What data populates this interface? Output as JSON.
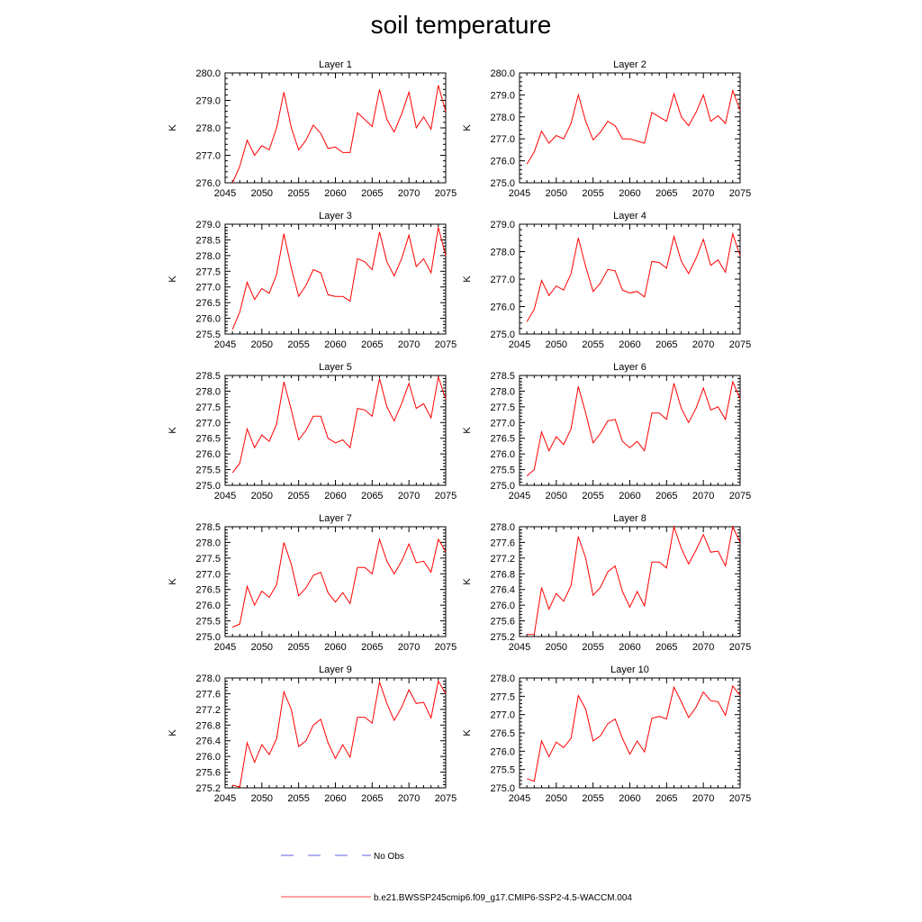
{
  "title": "soil temperature",
  "legend": {
    "obs_label": "No Obs",
    "model_label": "b.e21.BWSSP245cmip6.f09_g17.CMIP6-SSP2-4.5-WACCM.004",
    "obs_color": "#2b2bd6",
    "model_color": "#ff0000"
  },
  "chart_data": [
    {
      "type": "line",
      "title": "Layer 1",
      "ylabel": "K",
      "xlim": [
        2045,
        2075
      ],
      "ylim": [
        276.0,
        280.0
      ],
      "x_ticks": [
        2045,
        2050,
        2055,
        2060,
        2065,
        2070,
        2075
      ],
      "y_ticks": [
        "276.0",
        "277.0",
        "278.0",
        "279.0",
        "280.0"
      ],
      "x": [
        2046,
        2047,
        2048,
        2049,
        2050,
        2051,
        2052,
        2053,
        2054,
        2055,
        2056,
        2057,
        2058,
        2059,
        2060,
        2061,
        2062,
        2063,
        2064,
        2065,
        2066,
        2067,
        2068,
        2069,
        2070,
        2071,
        2072,
        2073,
        2074,
        2075
      ],
      "series": [
        {
          "name": "b.e21.BWSSP245cmip6.f09_g17.CMIP6-SSP2-4.5-WACCM.004",
          "values": [
            276.0,
            276.6,
            277.55,
            277.0,
            277.35,
            277.2,
            278.0,
            279.3,
            278.0,
            277.2,
            277.55,
            278.1,
            277.8,
            277.25,
            277.3,
            277.1,
            277.1,
            278.55,
            278.3,
            278.05,
            279.4,
            278.3,
            277.85,
            278.5,
            279.3,
            278.0,
            278.4,
            277.95,
            279.55,
            278.6
          ]
        }
      ]
    },
    {
      "type": "line",
      "title": "Layer 2",
      "ylabel": "K",
      "xlim": [
        2045,
        2075
      ],
      "ylim": [
        275.0,
        280.0
      ],
      "x_ticks": [
        2045,
        2050,
        2055,
        2060,
        2065,
        2070,
        2075
      ],
      "y_ticks": [
        "275.0",
        "276.0",
        "277.0",
        "278.0",
        "279.0",
        "280.0"
      ],
      "x": [
        2046,
        2047,
        2048,
        2049,
        2050,
        2051,
        2052,
        2053,
        2054,
        2055,
        2056,
        2057,
        2058,
        2059,
        2060,
        2061,
        2062,
        2063,
        2064,
        2065,
        2066,
        2067,
        2068,
        2069,
        2070,
        2071,
        2072,
        2073,
        2074,
        2075
      ],
      "series": [
        {
          "name": "b.e21.BWSSP245cmip6.f09_g17.CMIP6-SSP2-4.5-WACCM.004",
          "values": [
            275.85,
            276.4,
            277.35,
            276.8,
            277.15,
            277.0,
            277.7,
            279.0,
            277.8,
            276.95,
            277.3,
            277.8,
            277.6,
            277.0,
            277.0,
            276.9,
            276.8,
            278.2,
            278.0,
            277.8,
            279.05,
            278.0,
            277.6,
            278.2,
            279.0,
            277.8,
            278.05,
            277.7,
            279.2,
            278.3
          ]
        }
      ]
    },
    {
      "type": "line",
      "title": "Layer 3",
      "ylabel": "K",
      "xlim": [
        2045,
        2075
      ],
      "ylim": [
        275.5,
        279.0
      ],
      "x_ticks": [
        2045,
        2050,
        2055,
        2060,
        2065,
        2070,
        2075
      ],
      "y_ticks": [
        "275.5",
        "276.0",
        "276.5",
        "277.0",
        "277.5",
        "278.0",
        "278.5",
        "279.0"
      ],
      "x": [
        2046,
        2047,
        2048,
        2049,
        2050,
        2051,
        2052,
        2053,
        2054,
        2055,
        2056,
        2057,
        2058,
        2059,
        2060,
        2061,
        2062,
        2063,
        2064,
        2065,
        2066,
        2067,
        2068,
        2069,
        2070,
        2071,
        2072,
        2073,
        2074,
        2075
      ],
      "series": [
        {
          "name": "b.e21.BWSSP245cmip6.f09_g17.CMIP6-SSP2-4.5-WACCM.004",
          "values": [
            275.65,
            276.2,
            277.15,
            276.6,
            276.95,
            276.8,
            277.4,
            278.7,
            277.6,
            276.7,
            277.05,
            277.55,
            277.45,
            276.75,
            276.7,
            276.7,
            276.55,
            277.9,
            277.8,
            277.55,
            278.75,
            277.8,
            277.35,
            277.9,
            278.65,
            277.65,
            277.9,
            277.45,
            278.9,
            278.0
          ]
        }
      ]
    },
    {
      "type": "line",
      "title": "Layer 4",
      "ylabel": "K",
      "xlim": [
        2045,
        2075
      ],
      "ylim": [
        275.0,
        279.0
      ],
      "x_ticks": [
        2045,
        2050,
        2055,
        2060,
        2065,
        2070,
        2075
      ],
      "y_ticks": [
        "275.0",
        "276.0",
        "277.0",
        "278.0",
        "279.0"
      ],
      "x": [
        2046,
        2047,
        2048,
        2049,
        2050,
        2051,
        2052,
        2053,
        2054,
        2055,
        2056,
        2057,
        2058,
        2059,
        2060,
        2061,
        2062,
        2063,
        2064,
        2065,
        2066,
        2067,
        2068,
        2069,
        2070,
        2071,
        2072,
        2073,
        2074,
        2075
      ],
      "series": [
        {
          "name": "b.e21.BWSSP245cmip6.f09_g17.CMIP6-SSP2-4.5-WACCM.004",
          "values": [
            275.45,
            275.9,
            276.95,
            276.4,
            276.75,
            276.6,
            277.2,
            278.5,
            277.45,
            276.55,
            276.85,
            277.35,
            277.3,
            276.6,
            276.5,
            276.55,
            276.35,
            277.65,
            277.6,
            277.4,
            278.55,
            277.65,
            277.2,
            277.75,
            278.45,
            277.5,
            277.7,
            277.25,
            278.65,
            277.85
          ]
        }
      ]
    },
    {
      "type": "line",
      "title": "Layer 5",
      "ylabel": "K",
      "xlim": [
        2045,
        2075
      ],
      "ylim": [
        275.0,
        278.5
      ],
      "x_ticks": [
        2045,
        2050,
        2055,
        2060,
        2065,
        2070,
        2075
      ],
      "y_ticks": [
        "275.0",
        "275.5",
        "276.0",
        "276.5",
        "277.0",
        "277.5",
        "278.0",
        "278.5"
      ],
      "x": [
        2046,
        2047,
        2048,
        2049,
        2050,
        2051,
        2052,
        2053,
        2054,
        2055,
        2056,
        2057,
        2058,
        2059,
        2060,
        2061,
        2062,
        2063,
        2064,
        2065,
        2066,
        2067,
        2068,
        2069,
        2070,
        2071,
        2072,
        2073,
        2074,
        2075
      ],
      "series": [
        {
          "name": "b.e21.BWSSP245cmip6.f09_g17.CMIP6-SSP2-4.5-WACCM.004",
          "values": [
            275.4,
            275.7,
            276.8,
            276.2,
            276.6,
            276.4,
            276.95,
            278.3,
            277.4,
            276.45,
            276.75,
            277.2,
            277.2,
            276.5,
            276.35,
            276.45,
            276.2,
            277.45,
            277.4,
            277.2,
            278.4,
            277.5,
            277.05,
            277.6,
            278.25,
            277.45,
            277.6,
            277.15,
            278.45,
            277.75
          ]
        }
      ]
    },
    {
      "type": "line",
      "title": "Layer 6",
      "ylabel": "K",
      "xlim": [
        2045,
        2075
      ],
      "ylim": [
        275.0,
        278.5
      ],
      "x_ticks": [
        2045,
        2050,
        2055,
        2060,
        2065,
        2070,
        2075
      ],
      "y_ticks": [
        "275.0",
        "275.5",
        "276.0",
        "276.5",
        "277.0",
        "277.5",
        "278.0",
        "278.5"
      ],
      "x": [
        2046,
        2047,
        2048,
        2049,
        2050,
        2051,
        2052,
        2053,
        2054,
        2055,
        2056,
        2057,
        2058,
        2059,
        2060,
        2061,
        2062,
        2063,
        2064,
        2065,
        2066,
        2067,
        2068,
        2069,
        2070,
        2071,
        2072,
        2073,
        2074,
        2075
      ],
      "series": [
        {
          "name": "b.e21.BWSSP245cmip6.f09_g17.CMIP6-SSP2-4.5-WACCM.004",
          "values": [
            275.3,
            275.5,
            276.7,
            276.1,
            276.55,
            276.3,
            276.8,
            278.15,
            277.3,
            276.35,
            276.65,
            277.05,
            277.1,
            276.4,
            276.2,
            276.4,
            276.1,
            277.3,
            277.3,
            277.1,
            278.25,
            277.45,
            277.0,
            277.45,
            278.1,
            277.4,
            277.5,
            277.1,
            278.3,
            277.75
          ]
        }
      ]
    },
    {
      "type": "line",
      "title": "Layer 7",
      "ylabel": "K",
      "xlim": [
        2045,
        2075
      ],
      "ylim": [
        275.0,
        278.5
      ],
      "x_ticks": [
        2045,
        2050,
        2055,
        2060,
        2065,
        2070,
        2075
      ],
      "y_ticks": [
        "275.0",
        "275.5",
        "276.0",
        "276.5",
        "277.0",
        "277.5",
        "278.0",
        "278.5"
      ],
      "x": [
        2046,
        2047,
        2048,
        2049,
        2050,
        2051,
        2052,
        2053,
        2054,
        2055,
        2056,
        2057,
        2058,
        2059,
        2060,
        2061,
        2062,
        2063,
        2064,
        2065,
        2066,
        2067,
        2068,
        2069,
        2070,
        2071,
        2072,
        2073,
        2074,
        2075
      ],
      "series": [
        {
          "name": "b.e21.BWSSP245cmip6.f09_g17.CMIP6-SSP2-4.5-WACCM.004",
          "values": [
            275.3,
            275.4,
            276.6,
            276.0,
            276.45,
            276.25,
            276.65,
            278.0,
            277.3,
            276.3,
            276.55,
            276.95,
            277.05,
            276.4,
            276.1,
            276.4,
            276.05,
            277.2,
            277.2,
            277.0,
            278.1,
            277.4,
            277.0,
            277.4,
            277.95,
            277.35,
            277.4,
            277.05,
            278.1,
            277.7
          ]
        }
      ]
    },
    {
      "type": "line",
      "title": "Layer 8",
      "ylabel": "K",
      "xlim": [
        2045,
        2075
      ],
      "ylim": [
        275.2,
        278.0
      ],
      "x_ticks": [
        2045,
        2050,
        2055,
        2060,
        2065,
        2070,
        2075
      ],
      "y_ticks": [
        "275.2",
        "275.6",
        "276.0",
        "276.4",
        "276.8",
        "277.2",
        "277.6",
        "278.0"
      ],
      "x": [
        2046,
        2047,
        2048,
        2049,
        2050,
        2051,
        2052,
        2053,
        2054,
        2055,
        2056,
        2057,
        2058,
        2059,
        2060,
        2061,
        2062,
        2063,
        2064,
        2065,
        2066,
        2067,
        2068,
        2069,
        2070,
        2071,
        2072,
        2073,
        2074,
        2075
      ],
      "series": [
        {
          "name": "b.e21.BWSSP245cmip6.f09_g17.CMIP6-SSP2-4.5-WACCM.004",
          "values": [
            275.25,
            275.25,
            276.45,
            275.9,
            276.3,
            276.1,
            276.5,
            277.75,
            277.2,
            276.25,
            276.45,
            276.85,
            277.0,
            276.35,
            275.95,
            276.35,
            275.98,
            277.1,
            277.1,
            276.95,
            278.0,
            277.45,
            277.05,
            277.4,
            277.8,
            277.35,
            277.38,
            277.0,
            278.0,
            277.6
          ]
        }
      ]
    },
    {
      "type": "line",
      "title": "Layer 9",
      "ylabel": "K",
      "xlim": [
        2045,
        2075
      ],
      "ylim": [
        275.2,
        278.0
      ],
      "x_ticks": [
        2045,
        2050,
        2055,
        2060,
        2065,
        2070,
        2075
      ],
      "y_ticks": [
        "275.2",
        "275.6",
        "276.0",
        "276.4",
        "276.8",
        "277.2",
        "277.6",
        "278.0"
      ],
      "x": [
        2046,
        2047,
        2048,
        2049,
        2050,
        2051,
        2052,
        2053,
        2054,
        2055,
        2056,
        2057,
        2058,
        2059,
        2060,
        2061,
        2062,
        2063,
        2064,
        2065,
        2066,
        2067,
        2068,
        2069,
        2070,
        2071,
        2072,
        2073,
        2074,
        2075
      ],
      "series": [
        {
          "name": "b.e21.BWSSP245cmip6.f09_g17.CMIP6-SSP2-4.5-WACCM.004",
          "values": [
            275.27,
            275.22,
            276.35,
            275.85,
            276.3,
            276.05,
            276.45,
            277.65,
            277.2,
            276.25,
            276.4,
            276.8,
            276.95,
            276.35,
            275.95,
            276.3,
            275.98,
            277.0,
            277.0,
            276.85,
            277.9,
            277.35,
            276.92,
            277.25,
            277.7,
            277.35,
            277.38,
            276.98,
            277.92,
            277.6
          ]
        }
      ]
    },
    {
      "type": "line",
      "title": "Layer 10",
      "ylabel": "K",
      "xlim": [
        2045,
        2075
      ],
      "ylim": [
        275.0,
        278.0
      ],
      "x_ticks": [
        2045,
        2050,
        2055,
        2060,
        2065,
        2070,
        2075
      ],
      "y_ticks": [
        "275.0",
        "275.5",
        "276.0",
        "276.5",
        "277.0",
        "277.5",
        "278.0"
      ],
      "x": [
        2046,
        2047,
        2048,
        2049,
        2050,
        2051,
        2052,
        2053,
        2054,
        2055,
        2056,
        2057,
        2058,
        2059,
        2060,
        2061,
        2062,
        2063,
        2064,
        2065,
        2066,
        2067,
        2068,
        2069,
        2070,
        2071,
        2072,
        2073,
        2074,
        2075
      ],
      "series": [
        {
          "name": "b.e21.BWSSP245cmip6.f09_g17.CMIP6-SSP2-4.5-WACCM.004",
          "values": [
            275.25,
            275.18,
            276.28,
            275.85,
            276.25,
            276.1,
            276.35,
            277.52,
            277.15,
            276.28,
            276.42,
            276.75,
            276.88,
            276.35,
            275.92,
            276.28,
            275.98,
            276.9,
            276.95,
            276.88,
            277.75,
            277.35,
            276.92,
            277.2,
            277.62,
            277.38,
            277.35,
            276.98,
            277.78,
            277.52
          ]
        }
      ]
    }
  ]
}
